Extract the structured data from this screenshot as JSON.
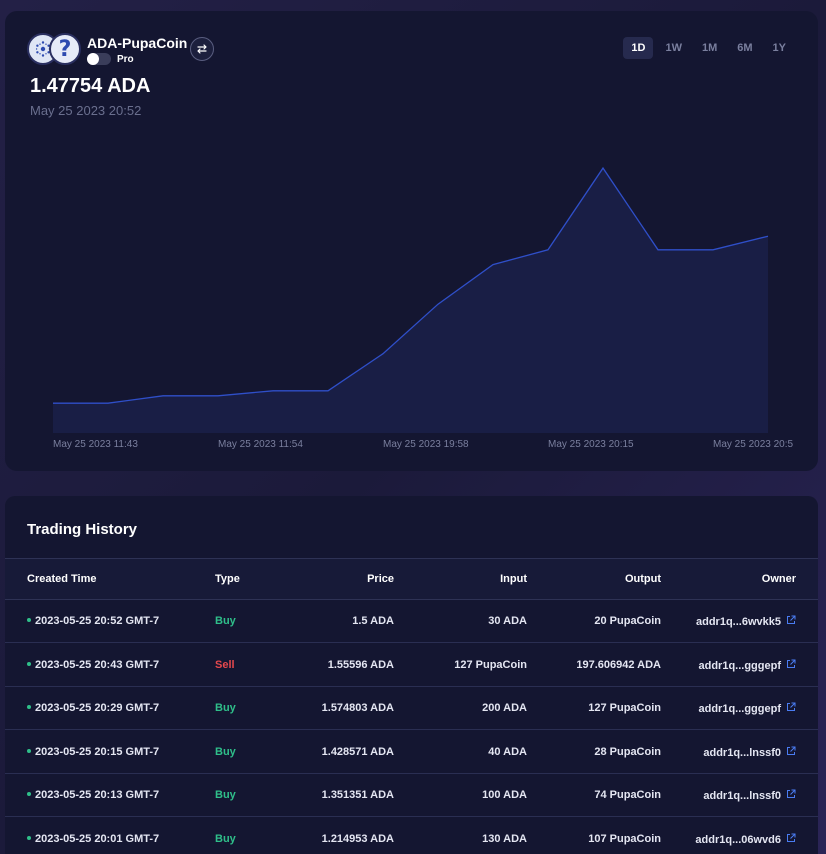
{
  "header": {
    "pair_name": "ADA-PupaCoin",
    "pro_label": "Pro",
    "swap_icon": "swap-arrows-icon",
    "coin_a_icon": "cardano-icon",
    "coin_b_icon": "unknown-token-icon",
    "coin_b_glyph": "?",
    "timeframes": [
      "1D",
      "1W",
      "1M",
      "6M",
      "1Y"
    ],
    "active_timeframe": "1D",
    "price": "1.47754 ADA",
    "price_time": "May 25 2023 20:52"
  },
  "chart_data": {
    "type": "area",
    "x_tick_labels": [
      "May 25 2023 11:43",
      "May 25 2023 11:54",
      "May 25 2023 19:58",
      "May 25 2023 20:15",
      "May 25 2023 20:5"
    ],
    "series": [
      {
        "values": [
          1.0,
          1.0,
          1.03,
          1.03,
          1.05,
          1.05,
          1.2,
          1.4,
          1.56,
          1.62,
          1.95,
          1.62,
          1.62,
          1.675
        ]
      }
    ],
    "ylim": [
      0.92,
      2.1
    ],
    "grid": false,
    "legend": "none",
    "line_color": "#2f4fc9",
    "fill_color": "#1a1f48"
  },
  "history": {
    "title": "Trading History",
    "columns": [
      "Created Time",
      "Type",
      "Price",
      "Input",
      "Output",
      "Owner"
    ],
    "link_icon": "external-link-icon",
    "rows": [
      {
        "time": "2023-05-25 20:52 GMT-7",
        "type": "Buy",
        "price": "1.5 ADA",
        "input": "30 ADA",
        "output": "20 PupaCoin",
        "owner": "addr1q...6wvkk5"
      },
      {
        "time": "2023-05-25 20:43 GMT-7",
        "type": "Sell",
        "price": "1.55596 ADA",
        "input": "127 PupaCoin",
        "output": "197.606942 ADA",
        "owner": "addr1q...gggepf"
      },
      {
        "time": "2023-05-25 20:29 GMT-7",
        "type": "Buy",
        "price": "1.574803 ADA",
        "input": "200 ADA",
        "output": "127 PupaCoin",
        "owner": "addr1q...gggepf"
      },
      {
        "time": "2023-05-25 20:15 GMT-7",
        "type": "Buy",
        "price": "1.428571 ADA",
        "input": "40 ADA",
        "output": "28 PupaCoin",
        "owner": "addr1q...lnssf0"
      },
      {
        "time": "2023-05-25 20:13 GMT-7",
        "type": "Buy",
        "price": "1.351351 ADA",
        "input": "100 ADA",
        "output": "74 PupaCoin",
        "owner": "addr1q...lnssf0"
      },
      {
        "time": "2023-05-25 20:01 GMT-7",
        "type": "Buy",
        "price": "1.214953 ADA",
        "input": "130 ADA",
        "output": "107 PupaCoin",
        "owner": "addr1q...06wvd6"
      }
    ]
  }
}
